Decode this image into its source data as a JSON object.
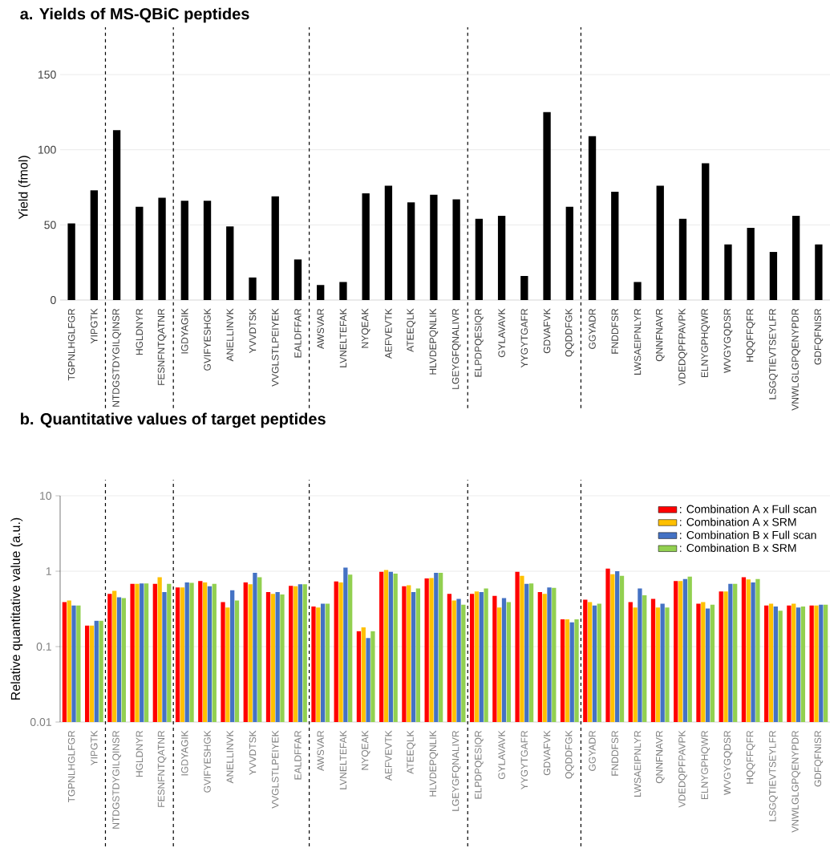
{
  "chart_data": [
    {
      "type": "bar",
      "title": "a. Yields of MS-QBiC peptides",
      "ylabel": "Yield (fmol)",
      "categories": [
        "TGPNLHGLFGR",
        "YIPGTK",
        "NTDGSTDYGILQINSR",
        "HGLDNYR",
        "FESNFNTQATNR",
        "IGDYAGIK",
        "GVIFYESHGK",
        "ANELLINVK",
        "YVVDTSK",
        "VVGLSTLPEIYEK",
        "EALDFFAR",
        "AWSVAR",
        "LVNELTEFAK",
        "NYQEAK",
        "AEFVEVTK",
        "ATEEQLK",
        "HLVDEPQNLIK",
        "LGEYGFQNALIVR",
        "ELPDPQESIQR",
        "GYLAVAVK",
        "YYGYTGAFR",
        "GDVAFVK",
        "QQDDFGK",
        "GGYADR",
        "FNDDFSR",
        "LWSAEIPNLYR",
        "QNNFNAVR",
        "VDEDQPFPAVPK",
        "ELNYGPHQWR",
        "WVGYGQDSR",
        "HQQFFQFR",
        "LSGQTIEVTSEYLFR",
        "VNWLGLGPQENYPDR",
        "GDFQFNISR"
      ],
      "values": [
        51,
        73,
        113,
        62,
        68,
        66,
        66,
        49,
        15,
        69,
        27,
        10,
        12,
        71,
        76,
        65,
        70,
        67,
        54,
        56,
        16,
        125,
        62,
        109,
        72,
        12,
        76,
        54,
        91,
        37,
        48,
        32,
        56,
        37
      ],
      "color": "#000000",
      "ylim": [
        0,
        150
      ],
      "yticks": [
        0,
        50,
        100,
        150
      ],
      "grid": "y"
    },
    {
      "type": "bar",
      "title": "b. Quantitative values of target peptides",
      "ylabel": "Relative quantitative value (a.u.)",
      "categories": [
        "TGPNLHGLFGR",
        "YIPGTK",
        "NTDGSTDYGILQINSR",
        "HGLDNYR",
        "FESNFNTQATNR",
        "IGDYAGIK",
        "GVIFYESHGK",
        "ANELLINVK",
        "YVVDTSK",
        "VVGLSTLPEIYEK",
        "EALDFFAR",
        "AWSVAR",
        "LVNELTEFAK",
        "NYQEAK",
        "AEFVEVTK",
        "ATEEQLK",
        "HLVDEPQNLIK",
        "LGEYGFQNALIVR",
        "ELPDPQESIQR",
        "GYLAVAVK",
        "YYGYTGAFR",
        "GDVAFVK",
        "QQDDFGK",
        "GGYADR",
        "FNDDFSR",
        "LWSAEIPNLYR",
        "QNNFNAVR",
        "VDEDQPFPAVPK",
        "ELNYGPHQWR",
        "WVGYGQDSR",
        "HQQFFQFR",
        "LSGQTIEVTSEYLFR",
        "VNWLGLGPQENYPDR",
        "GDFQFNISR"
      ],
      "series": [
        {
          "name": ": Combination A x Full scan",
          "color": "#ff0000",
          "values": [
            0.39,
            0.19,
            0.5,
            0.68,
            0.68,
            0.61,
            0.74,
            0.39,
            0.71,
            0.53,
            0.64,
            0.34,
            0.73,
            0.16,
            0.98,
            0.63,
            0.8,
            0.5,
            0.5,
            0.47,
            0.98,
            0.53,
            0.23,
            0.42,
            1.08,
            0.39,
            0.43,
            0.74,
            0.37,
            0.54,
            0.83,
            0.35,
            0.35,
            0.35
          ]
        },
        {
          "name": ": Combination A x SRM",
          "color": "#ffc000",
          "values": [
            0.41,
            0.19,
            0.55,
            0.68,
            0.83,
            0.61,
            0.71,
            0.33,
            0.67,
            0.5,
            0.63,
            0.33,
            0.71,
            0.18,
            1.04,
            0.65,
            0.81,
            0.41,
            0.54,
            0.33,
            0.87,
            0.5,
            0.23,
            0.39,
            0.91,
            0.33,
            0.33,
            0.74,
            0.39,
            0.54,
            0.78,
            0.37,
            0.37,
            0.35
          ]
        },
        {
          "name": ": Combination B x Full scan",
          "color": "#4472c4",
          "values": [
            0.35,
            0.22,
            0.45,
            0.69,
            0.53,
            0.71,
            0.63,
            0.56,
            0.95,
            0.53,
            0.67,
            0.37,
            1.12,
            0.13,
            0.98,
            0.53,
            0.95,
            0.43,
            0.53,
            0.44,
            0.68,
            0.61,
            0.21,
            0.35,
            1.0,
            0.59,
            0.37,
            0.79,
            0.32,
            0.68,
            0.71,
            0.34,
            0.33,
            0.36
          ]
        },
        {
          "name": ": Combination B x SRM",
          "color": "#92d050",
          "values": [
            0.35,
            0.22,
            0.44,
            0.69,
            0.68,
            0.7,
            0.68,
            0.41,
            0.83,
            0.49,
            0.67,
            0.37,
            0.9,
            0.16,
            0.93,
            0.59,
            0.95,
            0.36,
            0.59,
            0.39,
            0.69,
            0.6,
            0.23,
            0.37,
            0.87,
            0.48,
            0.33,
            0.85,
            0.36,
            0.68,
            0.79,
            0.3,
            0.34,
            0.36
          ]
        }
      ],
      "ylim": [
        0.01,
        10
      ],
      "yticks": [
        0.01,
        0.1,
        1,
        10
      ],
      "log": true,
      "grid": "y",
      "legend": "top right"
    }
  ]
}
